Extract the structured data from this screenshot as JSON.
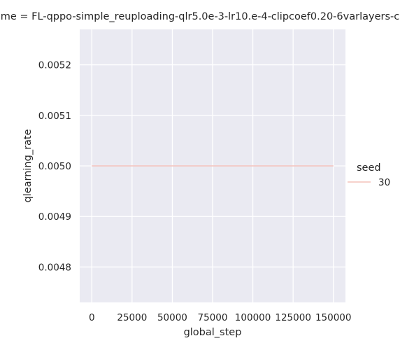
{
  "chart_data": {
    "type": "line",
    "title": "me = FL-qppo-simple_reuploading-qlr5.0e-3-lr10.e-4-clipcoef0.20-6varlayers-c",
    "xlabel": "global_step",
    "ylabel": "qlearning_rate",
    "xlim": [
      -7500,
      157500
    ],
    "ylim": [
      0.00473,
      0.00527
    ],
    "x_ticks": [
      0,
      25000,
      50000,
      75000,
      100000,
      125000,
      150000
    ],
    "x_tick_labels": [
      "0",
      "25000",
      "50000",
      "75000",
      "100000",
      "125000",
      "150000"
    ],
    "y_ticks": [
      0.0048,
      0.0049,
      0.005,
      0.0051,
      0.0052
    ],
    "y_tick_labels": [
      "0.0048",
      "0.0049",
      "0.0050",
      "0.0051",
      "0.0052"
    ],
    "grid": true,
    "legend": {
      "title": "seed",
      "placement": "right"
    },
    "series": [
      {
        "name": "30",
        "color": "#f4c2bb",
        "x": [
          0,
          150000
        ],
        "y": [
          0.005,
          0.005
        ]
      }
    ]
  }
}
